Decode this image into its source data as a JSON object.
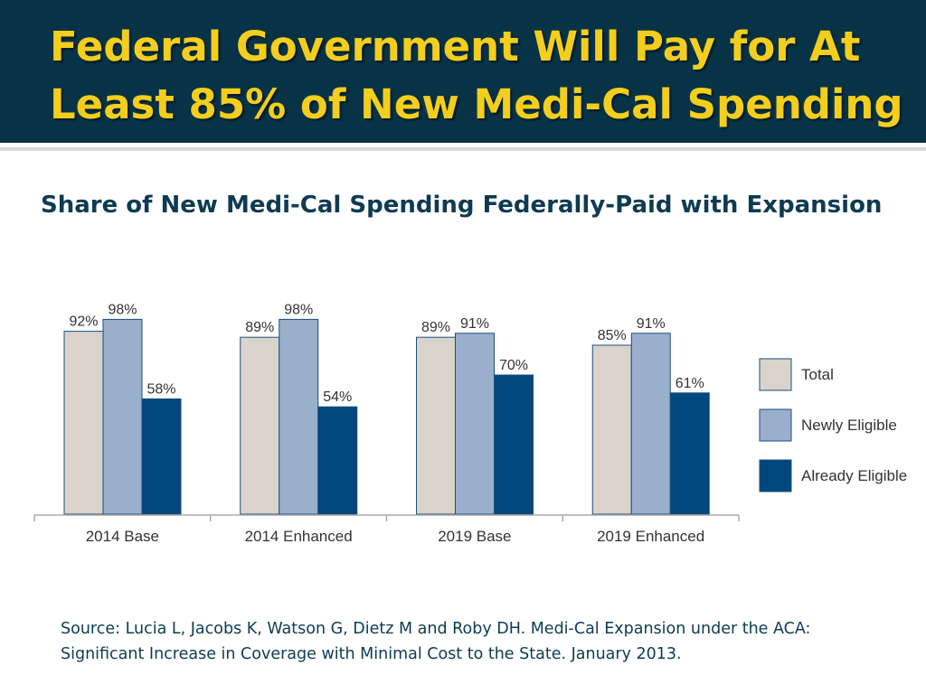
{
  "slide": {
    "title_line1": "Federal Government Will Pay for At",
    "title_line2": "Least 85% of New Medi-Cal Spending",
    "subtitle": "Share of New Medi-Cal Spending Federally-Paid with Expansion",
    "source_line1": "Source: Lucia L, Jacobs K, Watson G, Dietz M and Roby DH. Medi-Cal Expansion under the ACA:",
    "source_line2": "Significant Increase in Coverage with Minimal Cost to the State. January 2013."
  },
  "colors": {
    "header_bg": "#083347",
    "title": "#f3ce1c",
    "total": "#d9d3cc",
    "newly_eligible": "#9aafcc",
    "already_eligible": "#00477e"
  },
  "chart_data": {
    "type": "bar",
    "title": "Share of New Medi-Cal Spending Federally-Paid with Expansion",
    "xlabel": "",
    "ylabel": "",
    "ylim": [
      0,
      100
    ],
    "grid": false,
    "legend_position": "right",
    "categories": [
      "2014 Base",
      "2014 Enhanced",
      "2019 Base",
      "2019 Enhanced"
    ],
    "series": [
      {
        "name": "Total",
        "values": [
          92,
          89,
          89,
          85
        ],
        "labels": [
          "92%",
          "89%",
          "89%",
          "85%"
        ]
      },
      {
        "name": "Newly Eligible",
        "values": [
          98,
          98,
          91,
          91
        ],
        "labels": [
          "98%",
          "98%",
          "91%",
          "91%"
        ]
      },
      {
        "name": "Already Eligible",
        "values": [
          58,
          54,
          70,
          61
        ],
        "labels": [
          "58%",
          "54%",
          "70%",
          "61%"
        ]
      }
    ]
  }
}
